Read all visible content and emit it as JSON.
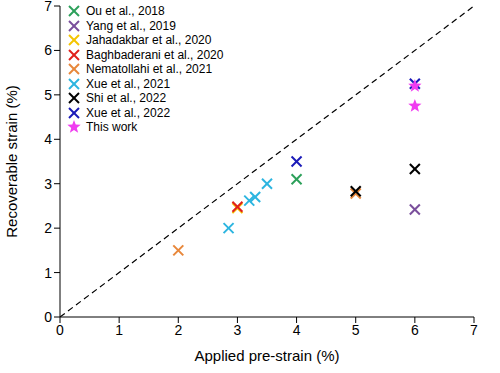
{
  "chart_data": {
    "type": "scatter",
    "x_label": "Applied pre-strain (%)",
    "y_label": "Recoverable strain (%)",
    "xlim": [
      0,
      7
    ],
    "ylim": [
      0,
      7
    ],
    "xticks": [
      0,
      1,
      2,
      3,
      4,
      5,
      6,
      7
    ],
    "yticks": [
      0,
      1,
      2,
      3,
      4,
      5,
      6,
      7
    ],
    "grid": false,
    "legend": "upper left",
    "reference_line": {
      "x": [
        0,
        7
      ],
      "y": [
        0,
        7
      ],
      "color": "#000000",
      "line_style": "dashed"
    },
    "series": [
      {
        "name": "Ou et al., 2018",
        "color": "#2ca05a",
        "marker": "x",
        "x": [
          4
        ],
        "values": [
          3.1
        ]
      },
      {
        "name": "Yang et al., 2019",
        "color": "#7a4f9c",
        "marker": "x",
        "x": [
          6
        ],
        "values": [
          2.42
        ]
      },
      {
        "name": "Jahadakbar et al., 2020",
        "color": "#f5c400",
        "marker": "x",
        "x": [
          3
        ],
        "values": [
          2.45
        ]
      },
      {
        "name": "Baghbaderani et al., 2020",
        "color": "#e0201c",
        "marker": "x",
        "x": [
          3
        ],
        "values": [
          2.48
        ]
      },
      {
        "name": "Nematollahi et al., 2021",
        "color": "#e8873a",
        "marker": "x",
        "x": [
          2,
          5
        ],
        "values": [
          1.5,
          2.78
        ]
      },
      {
        "name": "Xue et al., 2021",
        "color": "#2cb5e0",
        "marker": "x",
        "x": [
          2.85,
          3.2,
          3.3,
          3.5
        ],
        "values": [
          2.0,
          2.62,
          2.7,
          3.0
        ]
      },
      {
        "name": "Shi et al., 2022",
        "color": "#000000",
        "marker": "x",
        "x": [
          5,
          6
        ],
        "values": [
          2.83,
          3.33
        ]
      },
      {
        "name": "Xue et al., 2022",
        "color": "#1a1ab8",
        "marker": "x",
        "x": [
          4,
          6
        ],
        "values": [
          3.5,
          5.25
        ]
      },
      {
        "name": "This work",
        "color": "#f03cf0",
        "marker": "star",
        "x": [
          6,
          6
        ],
        "values": [
          5.2,
          4.75
        ]
      }
    ]
  }
}
